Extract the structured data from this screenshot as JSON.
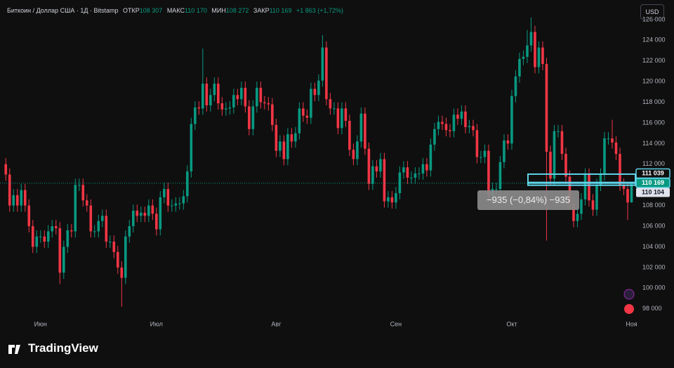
{
  "header": {
    "symbol": "Биткоин / Доллар США · 1Д · Bitstamp",
    "open_label": "ОТКР",
    "open": "108 307",
    "high_label": "МАКС",
    "high": "110 170",
    "low_label": "МИН",
    "low": "108 272",
    "close_label": "ЗАКР",
    "close": "110 169",
    "change": "+1 863 (+1,72%)"
  },
  "currency": "USD",
  "measure": "−935 (−0,84%) −935",
  "brand": "TradingView",
  "chart_data": {
    "type": "candlestick",
    "up_color": "#089981",
    "down_color": "#f23645",
    "xlim": [
      -1.5,
      163
    ],
    "xticks": [
      {
        "value": 9,
        "label": "Июн"
      },
      {
        "value": 39,
        "label": "Июл"
      },
      {
        "value": 70,
        "label": "Авг"
      },
      {
        "value": 101,
        "label": "Сен"
      },
      {
        "value": 131,
        "label": "Окт"
      },
      {
        "value": 162,
        "label": "Ноя"
      }
    ],
    "ylim": [
      97300,
      127900
    ],
    "yticks": [
      {
        "value": 98000,
        "label": "98 000"
      },
      {
        "value": 100000,
        "label": "100 000"
      },
      {
        "value": 102000,
        "label": "102 000"
      },
      {
        "value": 104000,
        "label": "104 000"
      },
      {
        "value": 106000,
        "label": "106 000"
      },
      {
        "value": 108000,
        "label": "108 000"
      },
      {
        "value": 110000,
        "label": "110 000"
      },
      {
        "value": 112000,
        "label": "112 000"
      },
      {
        "value": 114000,
        "label": "114 000"
      },
      {
        "value": 116000,
        "label": "116 000"
      },
      {
        "value": 118000,
        "label": "118 000"
      },
      {
        "value": 120000,
        "label": "120 000"
      },
      {
        "value": 122000,
        "label": "122 000"
      },
      {
        "value": 124000,
        "label": "124 000"
      },
      {
        "value": 126000,
        "label": "126 000"
      }
    ],
    "price_lines": [
      {
        "value": 111039,
        "label": "111 039"
      },
      {
        "value": 110169,
        "label": "110 169"
      },
      {
        "value": 110104,
        "label": "110 104"
      }
    ],
    "open": [
      112000,
      111000,
      108000,
      109000,
      108000,
      109500,
      108000,
      106000,
      104000,
      105000,
      105000,
      104500,
      105500,
      106000,
      105800,
      101500,
      104000,
      105600,
      105500,
      110000,
      110000,
      108500,
      108000,
      105500,
      105500,
      106500,
      107000,
      104500,
      104500,
      103500,
      102000,
      101000,
      105000,
      106000,
      107500,
      107000,
      107300,
      107000,
      108000,
      107200,
      105700,
      108800,
      109600,
      108000,
      108000,
      108200,
      108200,
      108900,
      111300,
      115900,
      117500,
      117400,
      119800,
      117700,
      118700,
      119800,
      117900,
      117300,
      117400,
      117500,
      118700,
      118300,
      119400,
      117600,
      115400,
      117600,
      119400,
      118000,
      117900,
      117800,
      115800,
      113300,
      114200,
      112500,
      114900,
      114200,
      115000,
      117400,
      116700,
      116500,
      119300,
      118700,
      120100,
      123300,
      118300,
      117400,
      117400,
      115500,
      117400,
      116200,
      113400,
      112500,
      114200,
      116900,
      113500,
      110100,
      111800,
      111300,
      112500,
      108400,
      108800,
      108300,
      109200,
      111200,
      111700,
      110700,
      110700,
      111100,
      111100,
      112000,
      111400,
      113900,
      115400,
      116100,
      115900,
      115300,
      115200,
      116800,
      116400,
      117100,
      115600,
      115700,
      115300,
      112700,
      112700,
      113300,
      109000,
      109600,
      109600,
      112200,
      114300,
      114000,
      118600,
      120500,
      122200,
      122400,
      123500,
      124800,
      121400,
      123300,
      121700,
      113200,
      110600,
      115200,
      115200,
      113000,
      110800,
      108200,
      106500,
      107200,
      108600,
      111000,
      108500,
      107600,
      110000,
      111000,
      114500,
      114500,
      114100,
      113000,
      110000,
      109600,
      108307
    ],
    "high": [
      112600,
      111600,
      109600,
      109600,
      110100,
      110100,
      108600,
      106600,
      105600,
      105600,
      105600,
      106100,
      106600,
      106600,
      106400,
      104600,
      106200,
      106200,
      110600,
      110600,
      110600,
      109100,
      108600,
      106100,
      107100,
      107600,
      107600,
      105100,
      105100,
      104100,
      102600,
      105600,
      106600,
      108100,
      108100,
      107900,
      107900,
      108600,
      108600,
      107800,
      109400,
      110200,
      110200,
      108600,
      108800,
      108800,
      109500,
      111900,
      116500,
      118100,
      118100,
      123200,
      120400,
      119300,
      120400,
      120400,
      118500,
      118000,
      118100,
      119300,
      119300,
      120000,
      120000,
      118200,
      118200,
      120000,
      120000,
      118600,
      118500,
      118400,
      116400,
      114800,
      114800,
      115500,
      115500,
      115600,
      118000,
      118000,
      117300,
      119900,
      119900,
      120700,
      124500,
      123900,
      118900,
      118000,
      118000,
      118000,
      118000,
      116800,
      114000,
      114800,
      117500,
      117500,
      114100,
      112400,
      112400,
      113100,
      113100,
      109400,
      109400,
      109800,
      111800,
      112300,
      112300,
      111300,
      111700,
      111700,
      112600,
      112600,
      114500,
      116000,
      116700,
      116700,
      116500,
      115900,
      117400,
      117400,
      117700,
      117700,
      116300,
      116300,
      115900,
      113300,
      113900,
      113900,
      110200,
      110200,
      112800,
      114900,
      114900,
      119200,
      121100,
      122800,
      123000,
      125000,
      126200,
      125400,
      123900,
      123900,
      122300,
      113800,
      115800,
      115800,
      115800,
      113600,
      111400,
      108800,
      107800,
      109200,
      111600,
      111600,
      109100,
      110600,
      111600,
      115100,
      115100,
      116300,
      114700,
      113600,
      110600,
      110200,
      110170
    ],
    "low": [
      110400,
      107400,
      107400,
      107400,
      107400,
      107400,
      105400,
      103400,
      103400,
      104400,
      103900,
      103900,
      104900,
      105200,
      100400,
      100900,
      103400,
      104900,
      104900,
      109400,
      107900,
      107400,
      104900,
      104900,
      104900,
      105900,
      103900,
      103900,
      102900,
      101400,
      98200,
      100400,
      104400,
      105400,
      106400,
      106400,
      106400,
      106400,
      106600,
      105100,
      105100,
      108200,
      107400,
      107400,
      107400,
      107600,
      107600,
      108300,
      110700,
      115300,
      116800,
      116800,
      117100,
      117100,
      118100,
      117300,
      116700,
      116700,
      116800,
      116900,
      117700,
      117700,
      117000,
      114800,
      114800,
      117000,
      117400,
      117300,
      117200,
      115200,
      112700,
      112700,
      111900,
      111900,
      113600,
      113600,
      114400,
      116100,
      115900,
      115900,
      118100,
      118100,
      119500,
      117700,
      116800,
      116800,
      114900,
      114900,
      115600,
      112800,
      111900,
      111900,
      113600,
      112900,
      109500,
      109500,
      110700,
      110700,
      107800,
      107800,
      107700,
      107700,
      108600,
      110600,
      110100,
      110100,
      110100,
      110500,
      110500,
      110800,
      110800,
      113300,
      114800,
      115300,
      114700,
      114600,
      114600,
      115800,
      115800,
      115000,
      115000,
      114700,
      112100,
      112100,
      112100,
      108400,
      108400,
      109000,
      109000,
      111600,
      113400,
      113400,
      118000,
      119900,
      121600,
      121800,
      122900,
      120800,
      120800,
      121100,
      104600,
      110000,
      110000,
      114600,
      112400,
      110200,
      107600,
      105900,
      105900,
      106600,
      108000,
      107900,
      107000,
      107000,
      109400,
      110400,
      113900,
      113500,
      112400,
      109400,
      109000,
      106600,
      108272
    ],
    "close": [
      111000,
      108000,
      109000,
      108000,
      109500,
      108000,
      106000,
      104000,
      105000,
      105000,
      104500,
      105500,
      106000,
      105800,
      101500,
      104000,
      105600,
      105500,
      110000,
      110000,
      108500,
      108000,
      105500,
      105500,
      106500,
      107000,
      104500,
      104500,
      103500,
      102000,
      101000,
      105000,
      106000,
      107500,
      107000,
      107300,
      107000,
      108000,
      107200,
      105700,
      108800,
      109600,
      108000,
      108000,
      108200,
      108200,
      108900,
      111300,
      115900,
      117500,
      117400,
      119800,
      117700,
      118700,
      119800,
      117900,
      117300,
      117400,
      117500,
      118700,
      118300,
      119400,
      117600,
      115400,
      117600,
      119400,
      118000,
      117900,
      117800,
      115800,
      113300,
      114200,
      112500,
      114900,
      114200,
      115000,
      117400,
      116700,
      116500,
      119300,
      118700,
      120100,
      123300,
      118300,
      117400,
      117400,
      115500,
      117400,
      116200,
      113400,
      112500,
      114200,
      116900,
      113500,
      110100,
      111800,
      111300,
      112500,
      108400,
      108800,
      108300,
      109200,
      111200,
      111700,
      110700,
      110700,
      111100,
      111100,
      112000,
      111400,
      113900,
      115400,
      116100,
      115900,
      115300,
      115200,
      116800,
      116400,
      117100,
      115600,
      115700,
      115300,
      112700,
      112700,
      113300,
      109000,
      109600,
      109600,
      112200,
      114300,
      114000,
      118600,
      120500,
      122200,
      122400,
      123500,
      124800,
      121400,
      123300,
      121700,
      113200,
      110600,
      115200,
      115200,
      113000,
      110800,
      108200,
      106500,
      107200,
      108600,
      111000,
      108500,
      107600,
      110000,
      111000,
      114500,
      114500,
      114100,
      113000,
      110000,
      109600,
      108300,
      110169
    ]
  }
}
